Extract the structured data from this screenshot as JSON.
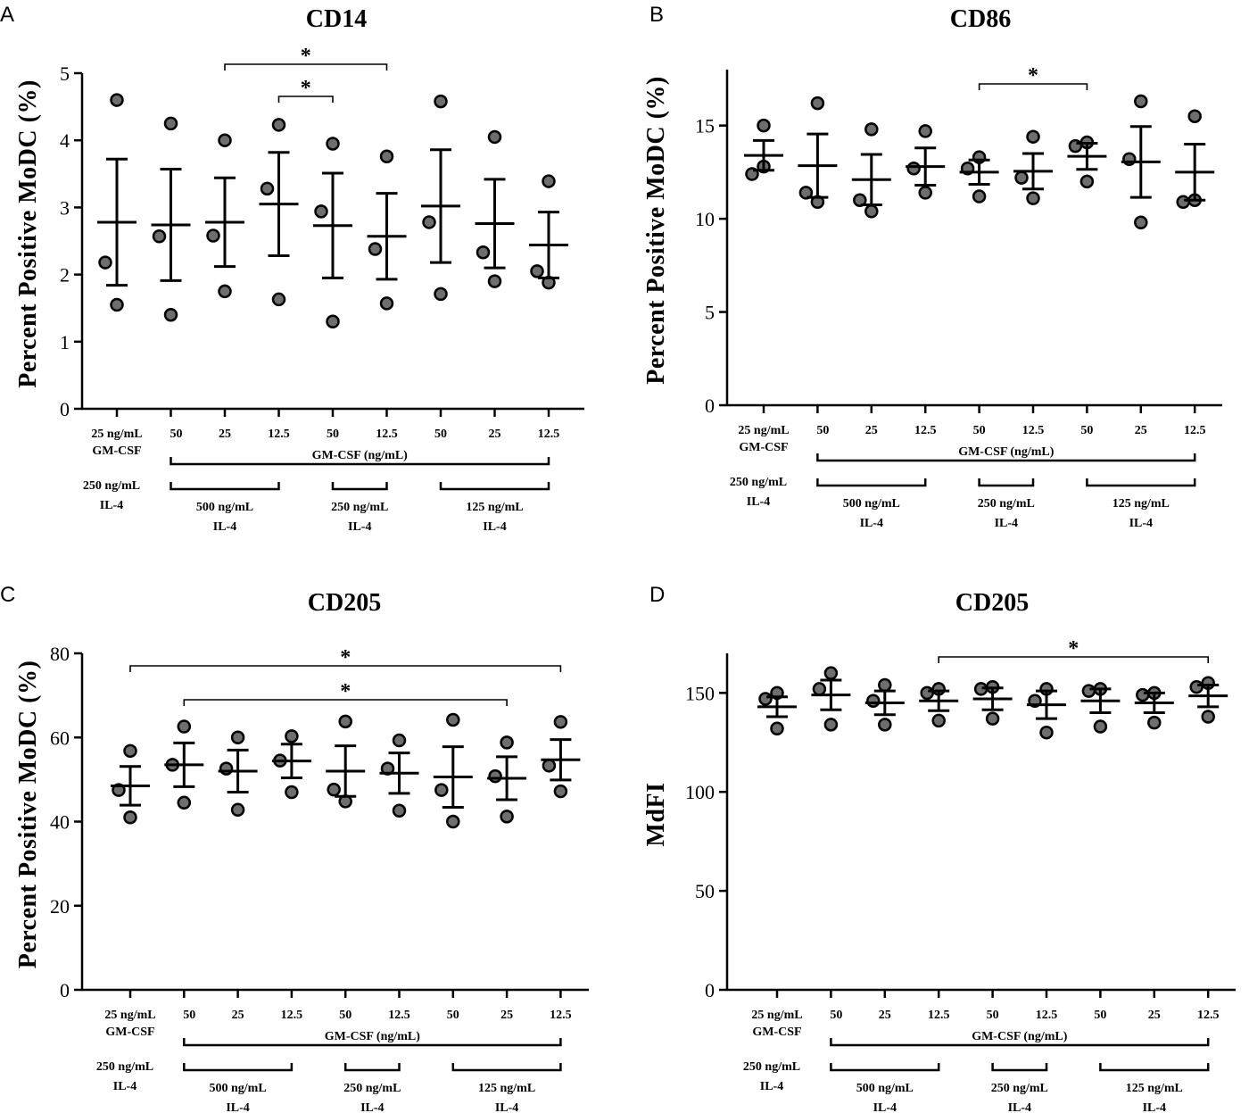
{
  "figure": {
    "common": {
      "categories": [
        "50",
        "25",
        "12.5",
        "50",
        "12.5",
        "50",
        "25",
        "12.5"
      ],
      "control_label": [
        "25 ng/mL",
        "GM-CSF"
      ],
      "control_il4_label": [
        "250 ng/mL",
        "IL-4"
      ],
      "gmcsf_bracket_label": "GM-CSF (ng/mL)",
      "il4_groups": [
        {
          "line1": "500 ng/mL",
          "line2": "IL-4"
        },
        {
          "line1": "250 ng/mL",
          "line2": "IL-4"
        },
        {
          "line1": "125 ng/mL",
          "line2": "IL-4"
        }
      ]
    }
  },
  "chart_data": [
    {
      "panel": "A",
      "type": "scatter",
      "title": "CD14",
      "ylabel": "Percent Positive MoDC (%)",
      "xlabel": "",
      "ylim": [
        0,
        5
      ],
      "yticks": [
        0,
        1,
        2,
        3,
        4,
        5
      ],
      "categories": [
        "25 ng/mL GM-CSF + 250 ng/mL IL-4",
        "50 / 500",
        "25 / 500",
        "12.5 / 500",
        "50 / 250",
        "12.5 / 250",
        "50 / 125",
        "25 / 125",
        "12.5 / 125"
      ],
      "points": [
        [
          4.6,
          2.18,
          1.55
        ],
        [
          4.25,
          2.57,
          1.4
        ],
        [
          4.0,
          2.58,
          1.75
        ],
        [
          4.23,
          3.28,
          1.63
        ],
        [
          3.95,
          2.94,
          1.3
        ],
        [
          3.76,
          2.38,
          1.57
        ],
        [
          4.58,
          2.78,
          1.71
        ],
        [
          4.05,
          2.33,
          1.9
        ],
        [
          3.39,
          2.05,
          1.88
        ]
      ],
      "mean": [
        2.78,
        2.74,
        2.78,
        3.05,
        2.73,
        2.57,
        3.02,
        2.76,
        2.44
      ],
      "sem": [
        0.94,
        0.83,
        0.66,
        0.77,
        0.78,
        0.64,
        0.84,
        0.66,
        0.49
      ],
      "significance": [
        {
          "from": 2,
          "to": 5,
          "label": "*"
        },
        {
          "from": 3,
          "to": 4,
          "label": "*"
        }
      ]
    },
    {
      "panel": "B",
      "type": "scatter",
      "title": "CD86",
      "ylabel": "Percent Positive MoDC (%)",
      "xlabel": "",
      "ylim": [
        0,
        18
      ],
      "yticks": [
        0,
        5,
        10,
        15
      ],
      "categories": [
        "25 ng/mL GM-CSF + 250 ng/mL IL-4",
        "50 / 500",
        "25 / 500",
        "12.5 / 500",
        "50 / 250",
        "12.5 / 250",
        "50 / 125",
        "25 / 125",
        "12.5 / 125"
      ],
      "points": [
        [
          15.0,
          12.4,
          12.8
        ],
        [
          16.2,
          11.4,
          10.9
        ],
        [
          14.8,
          11.0,
          10.4
        ],
        [
          14.7,
          12.7,
          11.4
        ],
        [
          13.3,
          12.7,
          11.2
        ],
        [
          14.4,
          12.2,
          11.1
        ],
        [
          14.1,
          13.9,
          12.0
        ],
        [
          16.3,
          13.2,
          9.8
        ],
        [
          15.5,
          10.9,
          11.0
        ]
      ],
      "mean": [
        13.4,
        12.85,
        12.1,
        12.8,
        12.5,
        12.55,
        13.35,
        13.05,
        12.5
      ],
      "sem": [
        0.8,
        1.7,
        1.35,
        1.0,
        0.65,
        0.95,
        0.7,
        1.9,
        1.5
      ],
      "significance": [
        {
          "from": 4,
          "to": 6,
          "label": "*"
        }
      ]
    },
    {
      "panel": "C",
      "type": "scatter",
      "title": "CD205",
      "ylabel": "Percent Positive MoDC (%)",
      "xlabel": "",
      "ylim": [
        0,
        80
      ],
      "yticks": [
        0,
        20,
        40,
        60,
        80
      ],
      "categories": [
        "25 ng/mL GM-CSF + 250 ng/mL IL-4",
        "50 / 500",
        "25 / 500",
        "12.5 / 500",
        "50 / 250",
        "12.5 / 250",
        "50 / 125",
        "25 / 125",
        "12.5 / 125"
      ],
      "points": [
        [
          56.8,
          47.5,
          41.0
        ],
        [
          62.6,
          53.5,
          44.5
        ],
        [
          60.0,
          52.6,
          42.8
        ],
        [
          60.3,
          54.5,
          47.0
        ],
        [
          63.8,
          47.6,
          44.8
        ],
        [
          59.3,
          52.6,
          42.6
        ],
        [
          64.2,
          47.5,
          40.0
        ],
        [
          58.8,
          50.8,
          41.2
        ],
        [
          63.7,
          53.3,
          47.2
        ]
      ],
      "mean": [
        48.5,
        53.5,
        52.0,
        54.4,
        52.0,
        51.5,
        50.6,
        50.3,
        54.7
      ],
      "sem": [
        4.6,
        5.2,
        5.0,
        4.0,
        6.0,
        4.8,
        7.2,
        5.1,
        4.8
      ],
      "significance": [
        {
          "from": 0,
          "to": 8,
          "label": "*"
        },
        {
          "from": 1,
          "to": 7,
          "label": "*"
        }
      ]
    },
    {
      "panel": "D",
      "type": "scatter",
      "title": "CD205",
      "ylabel": "MdFI",
      "xlabel": "",
      "ylim": [
        0,
        170
      ],
      "yticks": [
        0,
        50,
        100,
        150
      ],
      "categories": [
        "25 ng/mL GM-CSF + 250 ng/mL IL-4",
        "50 / 500",
        "25 / 500",
        "12.5 / 500",
        "50 / 250",
        "12.5 / 250",
        "50 / 125",
        "25 / 125",
        "12.5 / 125"
      ],
      "points": [
        [
          150,
          147,
          132
        ],
        [
          160,
          152,
          134
        ],
        [
          154,
          146,
          134
        ],
        [
          152,
          150,
          136
        ],
        [
          153,
          152,
          137
        ],
        [
          152,
          146,
          130
        ],
        [
          152,
          151,
          133
        ],
        [
          150,
          149,
          135
        ],
        [
          155,
          153,
          138
        ]
      ],
      "mean": [
        143,
        149,
        145,
        146,
        147,
        144,
        146,
        145,
        148.5
      ],
      "sem": [
        5,
        7.5,
        6,
        5,
        5.5,
        7,
        6,
        5,
        5.5
      ],
      "significance": [
        {
          "from": 3,
          "to": 8,
          "label": "*"
        }
      ]
    }
  ]
}
